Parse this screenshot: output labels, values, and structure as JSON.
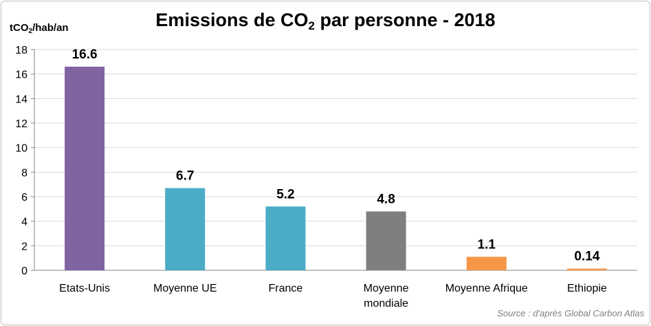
{
  "title_main": "Emissions de CO",
  "title_sub": "2",
  "title_rest": " par personne - 2018",
  "unit_main": "tCO",
  "unit_sub": "2",
  "unit_rest": "/hab/an",
  "source": "Source : d'après Global Carbon Atlas",
  "chart_data": {
    "type": "bar",
    "categories": [
      "Etats-Unis",
      "Moyenne UE",
      "France",
      "Moyenne mondiale",
      "Moyenne Afrique",
      "Ethiopie"
    ],
    "category_lines": [
      [
        "Etats-Unis"
      ],
      [
        "Moyenne UE"
      ],
      [
        "France"
      ],
      [
        "Moyenne",
        "mondiale"
      ],
      [
        "Moyenne Afrique"
      ],
      [
        "Ethiopie"
      ]
    ],
    "values": [
      16.6,
      6.7,
      5.2,
      4.8,
      1.1,
      0.14
    ],
    "data_labels": [
      "16.6",
      "6.7",
      "5.2",
      "4.8",
      "1.1",
      "0.14"
    ],
    "colors": [
      "#8064a2",
      "#4bacc6",
      "#4bacc6",
      "#7f7f7f",
      "#f79646",
      "#f79646"
    ],
    "ylim": [
      0,
      18
    ],
    "yticks": [
      0,
      2,
      4,
      6,
      8,
      10,
      12,
      14,
      16,
      18
    ],
    "grid": true,
    "legend": "none"
  }
}
